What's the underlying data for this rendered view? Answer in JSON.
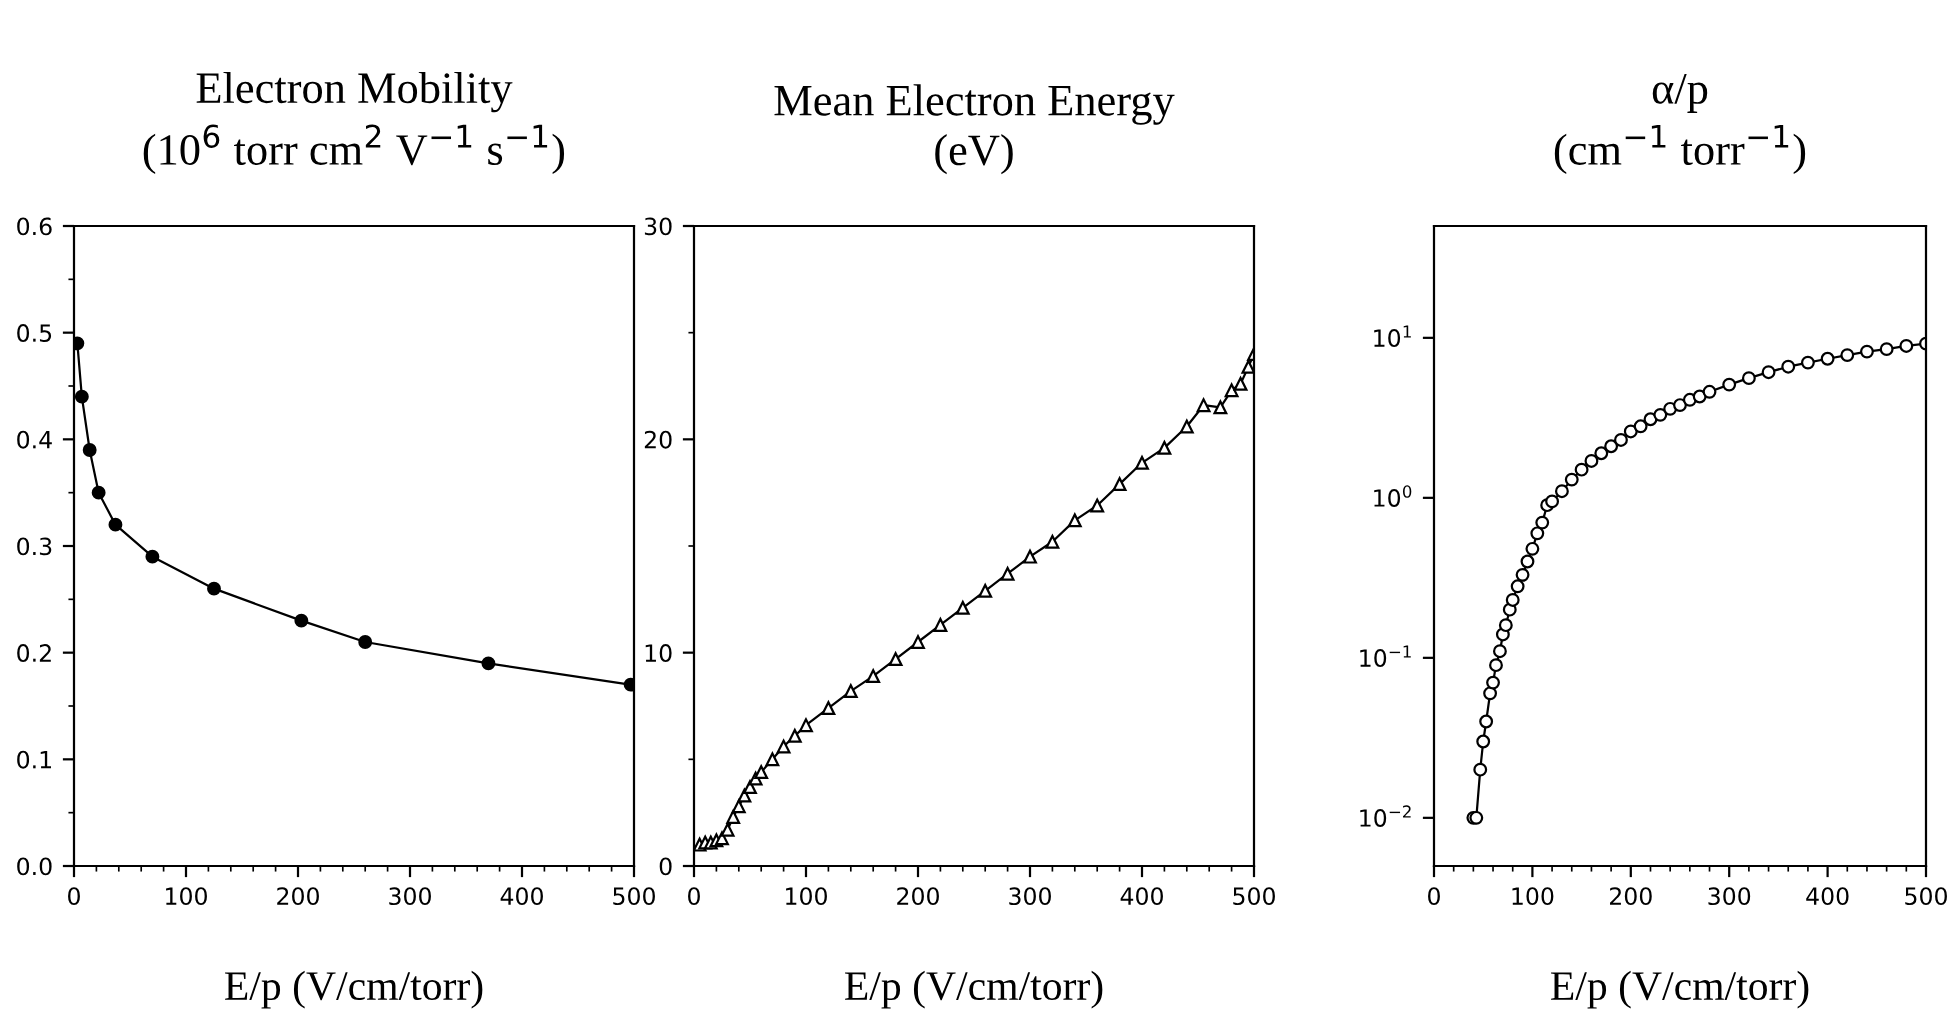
{
  "chart_data": [
    {
      "type": "line",
      "title": "Electron Mobility\n(10$^{6}$ torr cm$^{2}$ V$^{−1}$ s$^{−1}$)",
      "xlabel": "E/p (V/cm/torr)",
      "marker": "circle",
      "line_style": "solid",
      "grid": false,
      "x": [
        3,
        7,
        14,
        22,
        37,
        70,
        125,
        203,
        260,
        370,
        497
      ],
      "series": [
        {
          "color": "#000000",
          "values": [
            0.49,
            0.44,
            0.39,
            0.35,
            0.32,
            0.29,
            0.26,
            0.23,
            0.21,
            0.19,
            0.17
          ]
        }
      ],
      "xlim": [
        0,
        500
      ],
      "xticks": [
        0,
        100,
        200,
        300,
        400,
        500
      ],
      "ylim": [
        0,
        0.6
      ],
      "yticks": [
        {
          "value": 0,
          "label": "0.0"
        },
        0.1,
        0.2,
        0.3,
        0.4,
        0.5,
        0.6
      ]
    },
    {
      "type": "line",
      "title": "Mean Electron Energy\n(eV)",
      "xlabel": "E/p (V/cm/torr)",
      "marker": "triangle",
      "line_style": "solid",
      "grid": false,
      "x": [
        5,
        10,
        15,
        20,
        25,
        30,
        35,
        40,
        45,
        50,
        55,
        60,
        70,
        80,
        90,
        100,
        120,
        140,
        160,
        180,
        200,
        220,
        240,
        260,
        280,
        300,
        320,
        340,
        360,
        380,
        400,
        420,
        440,
        455,
        470,
        480,
        488,
        495,
        500
      ],
      "series": [
        {
          "color": "#ffffff",
          "values": [
            1.0,
            1.1,
            1.1,
            1.2,
            1.3,
            1.7,
            2.3,
            2.8,
            3.3,
            3.7,
            4.1,
            4.4,
            5.0,
            5.6,
            6.1,
            6.6,
            7.4,
            8.2,
            8.9,
            9.7,
            10.5,
            11.3,
            12.1,
            12.9,
            13.7,
            14.5,
            15.2,
            16.2,
            16.9,
            17.9,
            18.9,
            19.6,
            20.6,
            21.6,
            21.5,
            22.3,
            22.6,
            23.4,
            24.0
          ]
        }
      ],
      "xlim": [
        0,
        500
      ],
      "xticks": [
        0,
        100,
        200,
        300,
        400,
        500
      ],
      "ylim": [
        0,
        30
      ],
      "yticks": [
        0,
        10,
        20,
        30
      ]
    },
    {
      "type": "line",
      "title": "α/p\n(cm$^{−1}$ torr$^{−1}$)",
      "xlabel": "E/p (V/cm/torr)",
      "marker": "circle",
      "line_style": "solid",
      "grid": false,
      "log": "y",
      "x": [
        40,
        43,
        47,
        50,
        53,
        57,
        60,
        63,
        67,
        70,
        73,
        77,
        80,
        85,
        90,
        95,
        100,
        105,
        110,
        115,
        120,
        130,
        140,
        150,
        160,
        170,
        180,
        190,
        200,
        210,
        220,
        230,
        240,
        250,
        260,
        270,
        280,
        300,
        320,
        340,
        360,
        380,
        400,
        420,
        440,
        460,
        480,
        500
      ],
      "series": [
        {
          "color": "#ffffff",
          "values": [
            0.01,
            0.01,
            0.02,
            0.03,
            0.04,
            0.06,
            0.07,
            0.09,
            0.11,
            0.14,
            0.16,
            0.2,
            0.23,
            0.28,
            0.33,
            0.4,
            0.48,
            0.6,
            0.7,
            0.9,
            0.95,
            1.1,
            1.3,
            1.5,
            1.7,
            1.9,
            2.1,
            2.3,
            2.6,
            2.8,
            3.1,
            3.3,
            3.6,
            3.8,
            4.1,
            4.3,
            4.6,
            5.1,
            5.6,
            6.1,
            6.6,
            7.0,
            7.4,
            7.8,
            8.2,
            8.5,
            8.9,
            9.2
          ]
        }
      ],
      "xlim": [
        0,
        500
      ],
      "xticks": [
        0,
        100,
        200,
        300,
        400,
        500
      ],
      "ylim": [
        0.005,
        50
      ],
      "yticks": [
        {
          "value": 0.01,
          "label": "10$^{−2}$"
        },
        {
          "value": 0.1,
          "label": "10$^{−1}$"
        },
        {
          "value": 1,
          "label": "10$^{0}$"
        },
        {
          "value": 10,
          "label": "10$^{1}$"
        }
      ]
    }
  ]
}
